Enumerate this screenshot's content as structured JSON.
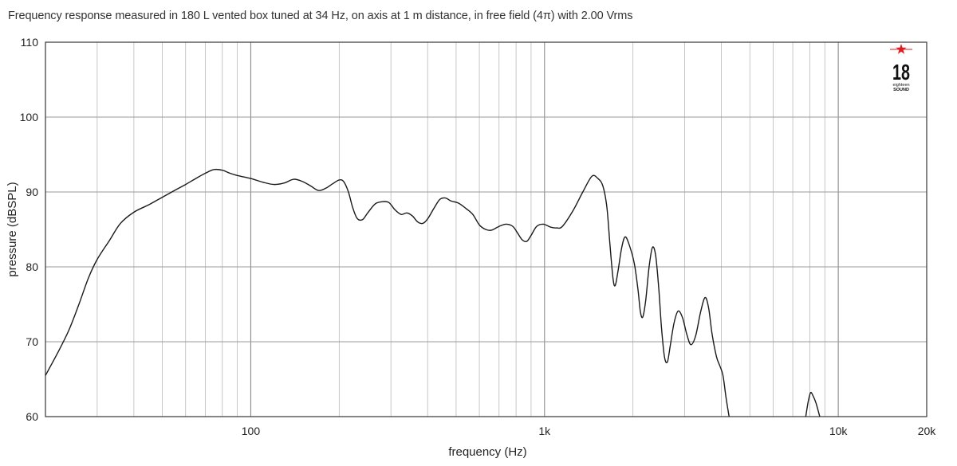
{
  "caption": "Frequency response measured in 180 L vented box tuned at 34 Hz, on axis at 1 m distance, in free field (4π) with 2.00 Vrms",
  "logo": {
    "number": "18",
    "line1": "eighteen",
    "line2": "SOUND",
    "star_color": "#e11b22"
  },
  "chart_data": {
    "type": "line",
    "title": "Frequency response measured in 180 L vented box tuned at 34 Hz, on axis at 1 m distance, in free field (4π) with 2.00 Vrms",
    "xlabel": "frequency (Hz)",
    "ylabel": "pressure (dBSPL)",
    "xscale": "log",
    "xlim": [
      20,
      20000
    ],
    "ylim": [
      60,
      110
    ],
    "grid": true,
    "x_tick_labels": [
      {
        "value": 100,
        "label": "100"
      },
      {
        "value": 1000,
        "label": "1k"
      },
      {
        "value": 10000,
        "label": "10k"
      },
      {
        "value": 20000,
        "label": "20k"
      }
    ],
    "y_tick_labels": [
      {
        "value": 60,
        "label": "60"
      },
      {
        "value": 70,
        "label": "70"
      },
      {
        "value": 80,
        "label": "80"
      },
      {
        "value": 90,
        "label": "90"
      },
      {
        "value": 100,
        "label": "100"
      },
      {
        "value": 110,
        "label": "110"
      }
    ],
    "series": [
      {
        "color": "#1a1a1a",
        "points": [
          [
            20,
            65.5
          ],
          [
            22,
            68.5
          ],
          [
            24,
            71.5
          ],
          [
            26,
            75
          ],
          [
            28,
            78.5
          ],
          [
            30,
            81
          ],
          [
            33,
            83.5
          ],
          [
            36,
            85.8
          ],
          [
            40,
            87.3
          ],
          [
            45,
            88.3
          ],
          [
            50,
            89.3
          ],
          [
            55,
            90.2
          ],
          [
            60,
            91
          ],
          [
            65,
            91.8
          ],
          [
            70,
            92.5
          ],
          [
            75,
            93
          ],
          [
            80,
            92.9
          ],
          [
            85,
            92.5
          ],
          [
            90,
            92.2
          ],
          [
            100,
            91.8
          ],
          [
            110,
            91.3
          ],
          [
            120,
            91
          ],
          [
            130,
            91.2
          ],
          [
            140,
            91.7
          ],
          [
            150,
            91.4
          ],
          [
            160,
            90.8
          ],
          [
            170,
            90.2
          ],
          [
            180,
            90.5
          ],
          [
            190,
            91.1
          ],
          [
            200,
            91.6
          ],
          [
            207,
            91.4
          ],
          [
            215,
            90
          ],
          [
            222,
            88
          ],
          [
            230,
            86.5
          ],
          [
            240,
            86.3
          ],
          [
            250,
            87.2
          ],
          [
            265,
            88.4
          ],
          [
            280,
            88.7
          ],
          [
            295,
            88.6
          ],
          [
            310,
            87.6
          ],
          [
            325,
            87
          ],
          [
            340,
            87.2
          ],
          [
            355,
            86.8
          ],
          [
            370,
            86
          ],
          [
            385,
            85.8
          ],
          [
            400,
            86.4
          ],
          [
            420,
            87.8
          ],
          [
            440,
            89
          ],
          [
            460,
            89.2
          ],
          [
            480,
            88.8
          ],
          [
            510,
            88.5
          ],
          [
            540,
            87.8
          ],
          [
            570,
            87
          ],
          [
            600,
            85.6
          ],
          [
            630,
            85
          ],
          [
            660,
            84.9
          ],
          [
            700,
            85.4
          ],
          [
            740,
            85.7
          ],
          [
            780,
            85.4
          ],
          [
            810,
            84.5
          ],
          [
            840,
            83.6
          ],
          [
            870,
            83.4
          ],
          [
            900,
            84.2
          ],
          [
            940,
            85.4
          ],
          [
            990,
            85.7
          ],
          [
            1050,
            85.3
          ],
          [
            1100,
            85.2
          ],
          [
            1150,
            85.4
          ],
          [
            1250,
            87.5
          ],
          [
            1350,
            90
          ],
          [
            1450,
            92.1
          ],
          [
            1520,
            91.8
          ],
          [
            1580,
            90.8
          ],
          [
            1630,
            88
          ],
          [
            1670,
            83
          ],
          [
            1710,
            78.5
          ],
          [
            1740,
            77.5
          ],
          [
            1780,
            79.5
          ],
          [
            1830,
            82.5
          ],
          [
            1880,
            84
          ],
          [
            1940,
            83
          ],
          [
            2020,
            80.5
          ],
          [
            2080,
            77
          ],
          [
            2120,
            74
          ],
          [
            2160,
            73.3
          ],
          [
            2210,
            75.5
          ],
          [
            2270,
            80
          ],
          [
            2330,
            82.6
          ],
          [
            2390,
            81.5
          ],
          [
            2450,
            77
          ],
          [
            2500,
            72
          ],
          [
            2560,
            68
          ],
          [
            2620,
            67.3
          ],
          [
            2680,
            69.5
          ],
          [
            2760,
            72.5
          ],
          [
            2850,
            74.1
          ],
          [
            2950,
            73.2
          ],
          [
            3050,
            71
          ],
          [
            3150,
            69.6
          ],
          [
            3270,
            70.8
          ],
          [
            3400,
            74
          ],
          [
            3520,
            75.9
          ],
          [
            3620,
            74.5
          ],
          [
            3720,
            71
          ],
          [
            3850,
            68
          ],
          [
            3950,
            66.8
          ],
          [
            4050,
            65.5
          ],
          [
            4150,
            62.5
          ],
          [
            4250,
            60
          ]
        ]
      },
      {
        "color": "#1a1a1a",
        "points": [
          [
            7750,
            60
          ],
          [
            7900,
            62
          ],
          [
            8050,
            63.2
          ],
          [
            8200,
            62.8
          ],
          [
            8400,
            61.8
          ],
          [
            8650,
            60
          ]
        ]
      }
    ]
  }
}
